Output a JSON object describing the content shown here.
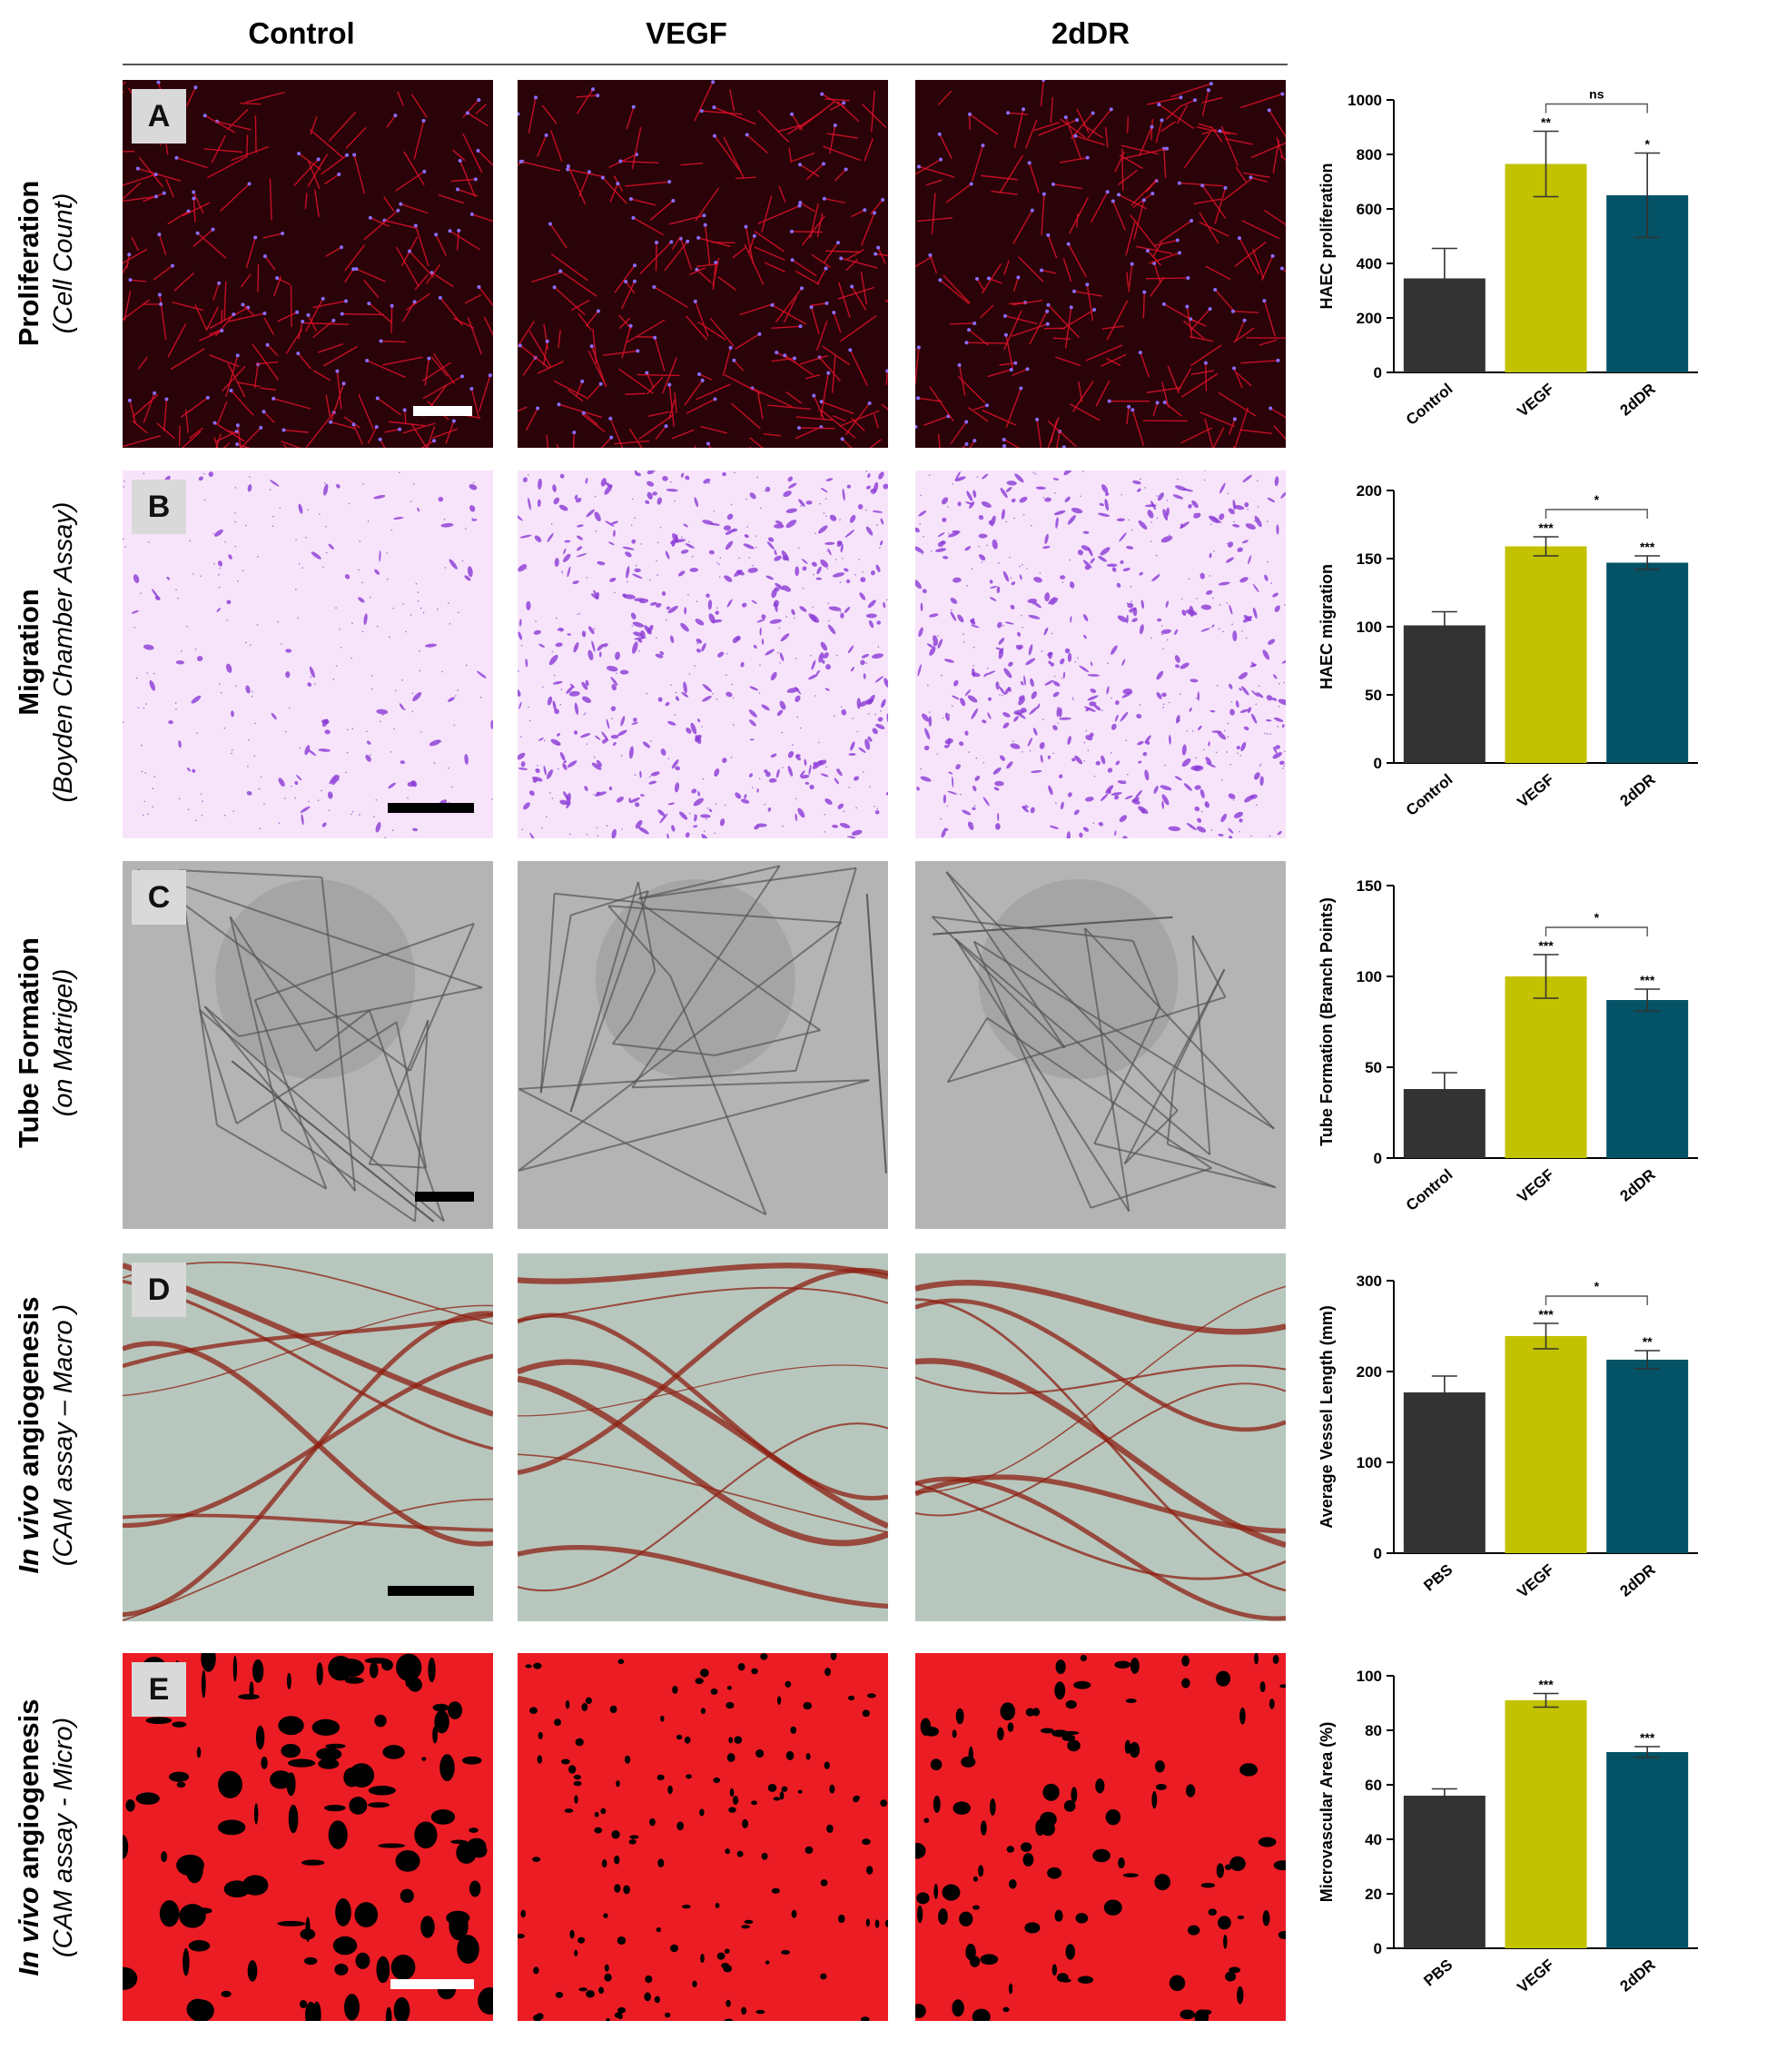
{
  "columns": [
    "Control",
    "VEGF",
    "2dDR"
  ],
  "rows": [
    {
      "id": "A",
      "title": "Proliferation",
      "title_italic": "",
      "subtitle": "(Cell Count)"
    },
    {
      "id": "B",
      "title": "Migration",
      "title_italic": "",
      "subtitle": "(Boyden Chamber Assay)"
    },
    {
      "id": "C",
      "title": "Tube Formation",
      "title_italic": "",
      "subtitle": "(on Matrigel)"
    },
    {
      "id": "D",
      "title": " angiogenesis",
      "title_italic": "In vivo",
      "subtitle": "(CAM assay – Macro )"
    },
    {
      "id": "E",
      "title": " angiogenesis",
      "title_italic": "In vivo",
      "subtitle": "(CAM assay - Micro)"
    }
  ],
  "panel_styles": {
    "A": {
      "bg": "#2a0308",
      "stroke": "#e0102a",
      "dot": "#8a6cff"
    },
    "B": {
      "bg": "#f8e4fa",
      "stroke": "#8a3ad6",
      "dot": "#5a2ab8"
    },
    "C": {
      "bg": "#b4b4b4",
      "stroke": "#555555",
      "dot": "#444444"
    },
    "D": {
      "bg": "#b7c7be",
      "stroke": "#8e1f12",
      "dot": "#6a1a12"
    },
    "E": {
      "bg": "#ec1c24",
      "stroke": "#000000",
      "dot": "#000000"
    }
  },
  "bar_colors": [
    "#333333",
    "#c2c200",
    "#045266"
  ],
  "chart_data": [
    {
      "type": "bar",
      "categories": [
        "Control",
        "VEGF",
        "2dDR"
      ],
      "values": [
        345,
        765,
        650
      ],
      "errors": [
        110,
        120,
        155
      ],
      "ylabel": "HAEC proliferation",
      "ylim": [
        0,
        1000
      ],
      "yticks": [
        0,
        200,
        400,
        600,
        800,
        1000
      ],
      "bar_labels": [
        "",
        "**",
        "*"
      ],
      "brackets": [
        {
          "from": 1,
          "to": 2,
          "label": "ns"
        }
      ]
    },
    {
      "type": "bar",
      "categories": [
        "Control",
        "VEGF",
        "2dDR"
      ],
      "values": [
        101,
        159,
        147
      ],
      "errors": [
        10,
        7,
        5
      ],
      "ylabel": "HAEC migration",
      "ylim": [
        0,
        200
      ],
      "yticks": [
        0,
        50,
        100,
        150,
        200
      ],
      "bar_labels": [
        "",
        "***",
        "***"
      ],
      "brackets": [
        {
          "from": 1,
          "to": 2,
          "label": "*"
        }
      ]
    },
    {
      "type": "bar",
      "categories": [
        "Control",
        "VEGF",
        "2dDR"
      ],
      "values": [
        38,
        100,
        87
      ],
      "errors": [
        9,
        12,
        6
      ],
      "ylabel": "Tube Formation (Branch Points)",
      "ylim": [
        0,
        150
      ],
      "yticks": [
        0,
        50,
        100,
        150
      ],
      "bar_labels": [
        "",
        "***",
        "***"
      ],
      "brackets": [
        {
          "from": 1,
          "to": 2,
          "label": "*"
        }
      ]
    },
    {
      "type": "bar",
      "categories": [
        "PBS",
        "VEGF",
        "2dDR"
      ],
      "values": [
        177,
        239,
        213
      ],
      "errors": [
        18,
        14,
        10
      ],
      "ylabel": "Average Vessel Length (mm)",
      "ylim": [
        0,
        300
      ],
      "yticks": [
        0,
        100,
        200,
        300
      ],
      "bar_labels": [
        "",
        "***",
        "**"
      ],
      "brackets": [
        {
          "from": 1,
          "to": 2,
          "label": "*"
        }
      ]
    },
    {
      "type": "bar",
      "categories": [
        "PBS",
        "VEGF",
        "2dDR"
      ],
      "values": [
        56,
        91,
        72
      ],
      "errors": [
        2.5,
        2.5,
        2
      ],
      "ylabel": "Microvascular Area  (%)",
      "ylim": [
        0,
        100
      ],
      "yticks": [
        0,
        20,
        40,
        60,
        80,
        100
      ],
      "bar_labels": [
        "",
        "***",
        "***"
      ],
      "brackets": []
    }
  ]
}
